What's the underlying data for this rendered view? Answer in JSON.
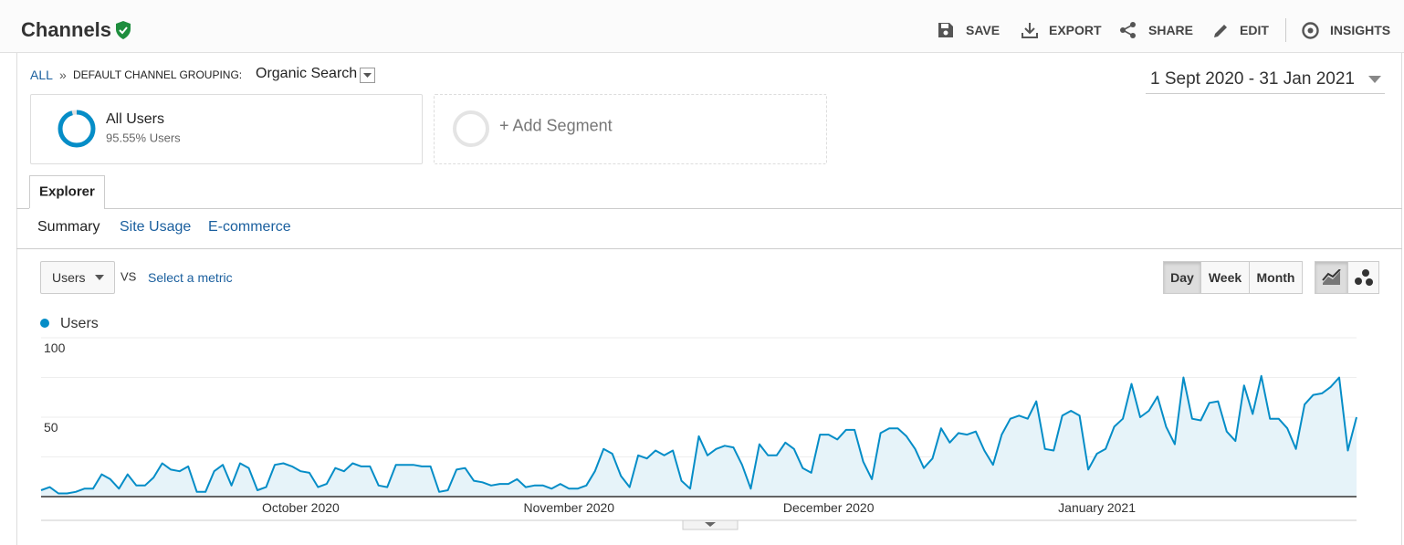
{
  "header": {
    "title": "Channels",
    "actions": [
      "SAVE",
      "EXPORT",
      "SHARE",
      "EDIT",
      "INSIGHTS"
    ]
  },
  "breadcrumb": {
    "root": "ALL",
    "separator": "»",
    "grouping": "DEFAULT CHANNEL GROUPING:",
    "value": "Organic Search"
  },
  "date_range": "1 Sept 2020 - 31 Jan 2021",
  "segments": [
    {
      "name": "All Users",
      "detail": "95.55% Users"
    }
  ],
  "add_segment": "+ Add Segment",
  "tabs": [
    "Explorer"
  ],
  "subtabs": [
    "Summary",
    "Site Usage",
    "E-commerce"
  ],
  "metric": "Users",
  "vs": "VS",
  "select_metric": "Select a metric",
  "periods": [
    "Day",
    "Week",
    "Month"
  ],
  "chart_data": {
    "type": "line",
    "categories": [
      null,
      null,
      null,
      null,
      null,
      null,
      null,
      null,
      null,
      null,
      null,
      null,
      null,
      null,
      null,
      null,
      null,
      null,
      null,
      null,
      null,
      null,
      null,
      null,
      null,
      null,
      null,
      null,
      null,
      null,
      "October 2020",
      null,
      null,
      null,
      null,
      null,
      null,
      null,
      null,
      null,
      null,
      null,
      null,
      null,
      null,
      null,
      null,
      null,
      null,
      null,
      null,
      null,
      null,
      null,
      null,
      null,
      null,
      null,
      null,
      null,
      null,
      "November 2020",
      null,
      null,
      null,
      null,
      null,
      null,
      null,
      null,
      null,
      null,
      null,
      null,
      null,
      null,
      null,
      null,
      null,
      null,
      null,
      null,
      null,
      null,
      null,
      null,
      null,
      null,
      null,
      null,
      null,
      "December 2020",
      null,
      null,
      null,
      null,
      null,
      null,
      null,
      null,
      null,
      null,
      null,
      null,
      null,
      null,
      null,
      null,
      null,
      null,
      null,
      null,
      null,
      null,
      null,
      null,
      null,
      null,
      null,
      null,
      null,
      null,
      "January 2021",
      null,
      null,
      null,
      null,
      null,
      null,
      null,
      null,
      null,
      null,
      null,
      null,
      null,
      null,
      null,
      null,
      null,
      null,
      null,
      null,
      null,
      null,
      null,
      null,
      null,
      null,
      null,
      null,
      null,
      null
    ],
    "series": [
      {
        "name": "Users",
        "color": "#058dc7",
        "values": [
          4,
          6,
          2,
          2,
          3,
          5,
          5,
          14,
          11,
          5,
          14,
          7,
          7,
          12,
          21,
          17,
          16,
          19,
          3,
          3,
          16,
          20,
          7,
          21,
          18,
          4,
          6,
          20,
          21,
          19,
          16,
          15,
          6,
          8,
          18,
          16,
          21,
          19,
          19,
          7,
          6,
          20,
          20,
          20,
          19,
          19,
          3,
          4,
          17,
          18,
          10,
          9,
          7,
          8,
          8,
          11,
          6,
          7,
          7,
          5,
          8,
          5,
          5,
          7,
          16,
          30,
          27,
          13,
          6,
          26,
          24,
          29,
          26,
          29,
          10,
          5,
          38,
          26,
          30,
          32,
          31,
          20,
          5,
          33,
          26,
          26,
          34,
          30,
          18,
          15,
          39,
          39,
          36,
          42,
          42,
          22,
          11,
          40,
          43,
          43,
          38,
          30,
          18,
          24,
          43,
          34,
          40,
          39,
          41,
          29,
          20,
          39,
          49,
          51,
          49,
          60,
          30,
          29,
          51,
          54,
          51,
          17,
          27,
          30,
          44,
          49,
          71,
          50,
          54,
          63,
          44,
          33,
          75,
          49,
          48,
          59,
          60,
          41,
          35,
          70,
          52,
          76,
          49,
          49,
          43,
          30,
          58,
          64,
          65,
          69,
          75,
          29,
          50
        ]
      }
    ],
    "ylim": [
      0,
      100
    ],
    "yticks": [
      50,
      100
    ],
    "ygrid": [
      0,
      25,
      50,
      75,
      100
    ],
    "area_fill": "#e6f3f9"
  }
}
